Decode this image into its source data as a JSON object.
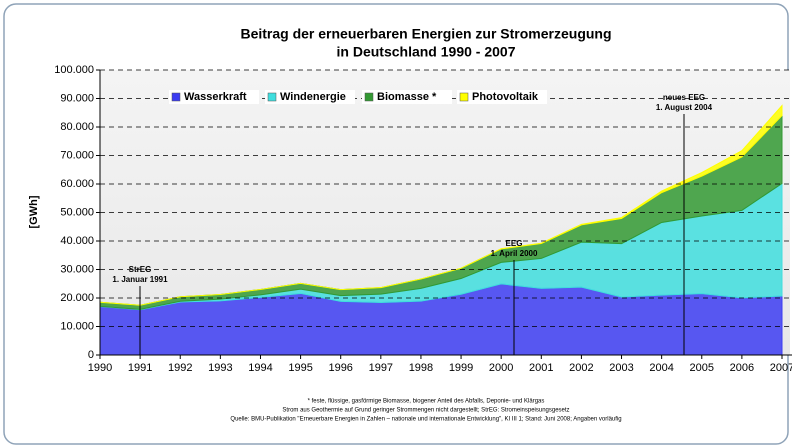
{
  "chart_data": {
    "type": "stacked-area",
    "title": "Beitrag der erneuerbaren Energien zur Stromerzeugung",
    "subtitle": "in Deutschland 1990 - 2007",
    "y_label": "[GWh]",
    "x": [
      1990,
      1991,
      1992,
      1993,
      1994,
      1995,
      1996,
      1997,
      1998,
      1999,
      2000,
      2001,
      2002,
      2003,
      2004,
      2005,
      2006,
      2007
    ],
    "xlim": [
      1990,
      2007
    ],
    "xticks": [
      1990,
      1991,
      1992,
      1993,
      1994,
      1995,
      1996,
      1997,
      1998,
      1999,
      2000,
      2001,
      2002,
      2003,
      2004,
      2005,
      2006,
      2007
    ],
    "ylim": [
      0,
      100000
    ],
    "yticks": [
      0,
      {
        "value": 10000,
        "label": "10.000"
      },
      {
        "value": 20000,
        "label": "20.000"
      },
      {
        "value": 30000,
        "label": "30.000"
      },
      {
        "value": 40000,
        "label": "40.000"
      },
      {
        "value": 50000,
        "label": "50.000"
      },
      {
        "value": 60000,
        "label": "60.000"
      },
      {
        "value": 70000,
        "label": "70.000"
      },
      {
        "value": 80000,
        "label": "80.000"
      },
      {
        "value": 90000,
        "label": "90.000"
      },
      {
        "value": 100000,
        "label": "100.000"
      }
    ],
    "grid": true,
    "legend": "top",
    "series": [
      {
        "name": "Wasserkraft",
        "color": "#3d3df2",
        "values": [
          17000,
          15900,
          18600,
          19000,
          20200,
          21600,
          18800,
          18400,
          18900,
          21300,
          24936,
          23383,
          23824,
          20350,
          21000,
          21524,
          20042,
          20700
        ]
      },
      {
        "name": "Windenergie",
        "color": "#40dede",
        "values": [
          71,
          100,
          275,
          600,
          909,
          1500,
          2032,
          2966,
          4489,
          5528,
          7550,
          10509,
          15786,
          18713,
          25509,
          27229,
          30710,
          39500
        ]
      },
      {
        "name": "Biomasse *",
        "color": "#339933",
        "values": [
          1435,
          1471,
          1558,
          1635,
          1875,
          2010,
          2098,
          2273,
          3256,
          3585,
          4731,
          5214,
          6048,
          8841,
          10471,
          13992,
          18713,
          23800
        ]
      },
      {
        "name": "Photovoltaik",
        "color": "#ffff00",
        "values": [
          1,
          2,
          3,
          6,
          8,
          11,
          16,
          26,
          32,
          42,
          64,
          116,
          188,
          313,
          557,
          1282,
          2220,
          3500
        ]
      }
    ],
    "annotations": [
      {
        "lines": [
          "StrEG",
          "1. Januar 1991"
        ]
      },
      {
        "lines": [
          "EEG",
          "1. April 2000"
        ]
      },
      {
        "lines": [
          "neues EEG",
          "1. August 2004"
        ]
      }
    ],
    "footnotes": [
      "* feste, flüssige, gasförmige Biomasse, biogener Anteil des Abfalls, Deponie- und Klärgas",
      "Strom aus Geothermie auf Grund geringer Strommengen nicht dargestellt; StrEG: Stromeinspeisungsgesetz",
      "Quelle: BMU-Publikation \"Erneuerbare Energien in Zahlen – nationale und internationale Entwicklung\", KI III 1; Stand: Juni 2008; Angaben vorläufig"
    ]
  }
}
